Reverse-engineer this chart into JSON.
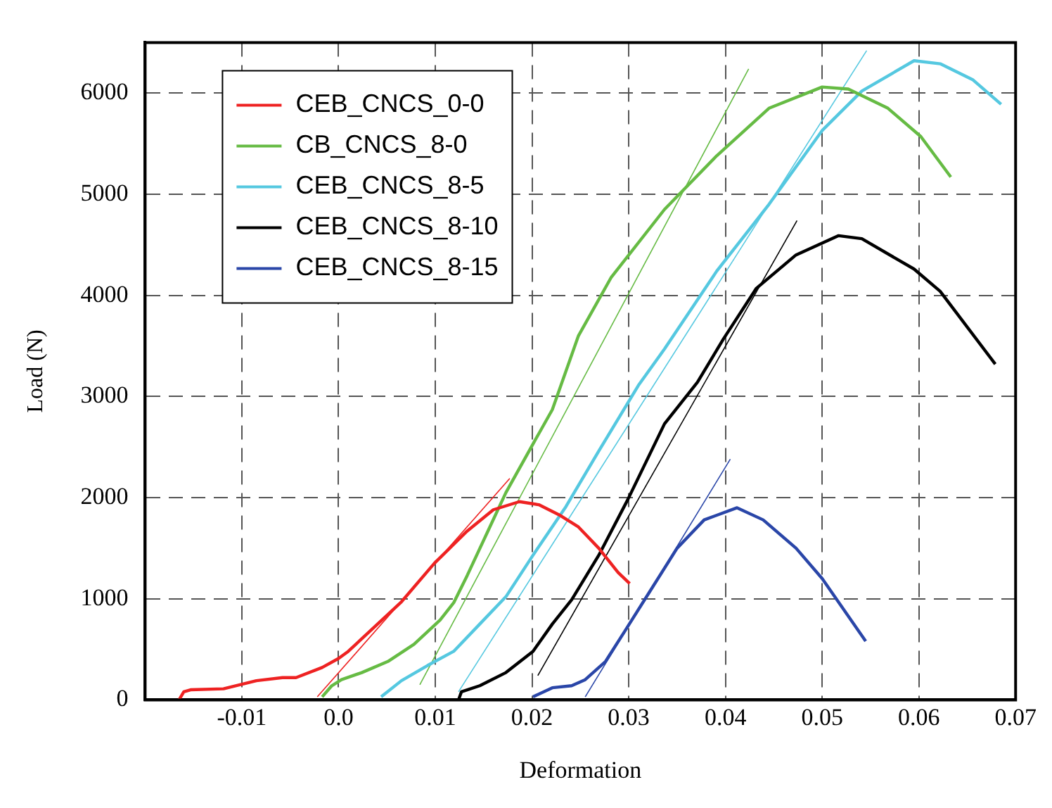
{
  "chart_data": {
    "type": "line",
    "xlabel": "Deformation",
    "ylabel": "Load (N)",
    "xlim": [
      -0.02,
      0.07
    ],
    "xticks": [
      -0.01,
      {
        "value": 0,
        "label": "0.0"
      },
      0.01,
      0.02,
      0.03,
      0.04,
      0.05,
      0.06,
      0.07
    ],
    "ylim": [
      0,
      6500
    ],
    "yticks": [
      0,
      1000,
      2000,
      3000,
      4000,
      5000,
      6000
    ],
    "grid": true,
    "legend": "top left",
    "marker": "none",
    "line_style": "solid",
    "series": [
      {
        "name": "CEB_CNCS_0-0",
        "color": "#ee2222",
        "x": [
          -0.0165,
          -0.016,
          -0.0153,
          -0.0119,
          -0.0085,
          -0.0058,
          -0.0044,
          -0.0017,
          0,
          0.001,
          0.0037,
          0.0065,
          0.0099,
          0.0133,
          0.016,
          0.0187,
          0.0207,
          0.0228,
          0.0248,
          0.0269,
          0.0289,
          0.0301
        ],
        "values": [
          0,
          80,
          100,
          110,
          190,
          220,
          220,
          320,
          410,
          480,
          720,
          970,
          1350,
          1670,
          1880,
          1960,
          1930,
          1830,
          1710,
          1500,
          1260,
          1150
        ]
      },
      {
        "name": "CB_CNCS_8-0",
        "color": "#66bb44",
        "x": [
          -0.0017,
          -0.0007,
          0.0003,
          0.0024,
          0.0051,
          0.0078,
          0.0105,
          0.0119,
          0.0133,
          0.0153,
          0.0173,
          0.0201,
          0.0221,
          0.0248,
          0.0282,
          0.0337,
          0.0391,
          0.0445,
          0.05,
          0.0527,
          0.0568,
          0.0602,
          0.0633
        ],
        "values": [
          30,
          140,
          200,
          270,
          380,
          550,
          790,
          960,
          1230,
          1640,
          2050,
          2530,
          2870,
          3600,
          4180,
          4850,
          5380,
          5850,
          6060,
          6040,
          5850,
          5570,
          5170
        ]
      },
      {
        "name": "CEB_CNCS_8-5",
        "color": "#55c8e0",
        "x": [
          0.0044,
          0.0065,
          0.0092,
          0.0119,
          0.0146,
          0.0173,
          0.0201,
          0.0235,
          0.0269,
          0.031,
          0.0337,
          0.0391,
          0.0445,
          0.05,
          0.0541,
          0.0595,
          0.0622,
          0.0656,
          0.0685
        ],
        "values": [
          30,
          190,
          340,
          480,
          750,
          1020,
          1430,
          1910,
          2460,
          3110,
          3470,
          4240,
          4900,
          5630,
          6020,
          6320,
          6290,
          6130,
          5890
        ]
      },
      {
        "name": "CEB_CNCS_8-10",
        "color": "#000000",
        "x": [
          0.0124,
          0.0127,
          0.0146,
          0.0173,
          0.0201,
          0.0221,
          0.0241,
          0.0269,
          0.0299,
          0.0337,
          0.0371,
          0.0398,
          0.0432,
          0.0473,
          0.0517,
          0.0541,
          0.0595,
          0.0622,
          0.0679
        ],
        "values": [
          0,
          80,
          140,
          270,
          480,
          750,
          990,
          1430,
          1980,
          2730,
          3140,
          3570,
          4070,
          4400,
          4590,
          4560,
          4260,
          4040,
          3320
        ]
      },
      {
        "name": "CEB_CNCS_8-15",
        "color": "#2a46a8",
        "x": [
          0.0201,
          0.0221,
          0.0241,
          0.0255,
          0.0276,
          0.0296,
          0.0323,
          0.035,
          0.0378,
          0.0412,
          0.0439,
          0.0473,
          0.05,
          0.0545
        ],
        "values": [
          30,
          120,
          140,
          200,
          380,
          680,
          1090,
          1500,
          1780,
          1900,
          1780,
          1500,
          1200,
          580
        ]
      },
      {
        "type": "line",
        "color": "#ee2222",
        "x": [
          -0.0022,
          0.0177
        ],
        "values": [
          30,
          2190
        ]
      },
      {
        "type": "line",
        "color": "#66bb44",
        "x": [
          0.0084,
          0.0424
        ],
        "values": [
          150,
          6240
        ]
      },
      {
        "type": "line",
        "color": "#55c8e0",
        "x": [
          0.0124,
          0.0546
        ],
        "values": [
          80,
          6420
        ]
      },
      {
        "type": "line",
        "color": "#000000",
        "x": [
          0.0206,
          0.0474
        ],
        "values": [
          240,
          4740
        ]
      },
      {
        "type": "line",
        "color": "#2a46a8",
        "x": [
          0.0255,
          0.0405
        ],
        "values": [
          30,
          2380
        ]
      }
    ]
  }
}
